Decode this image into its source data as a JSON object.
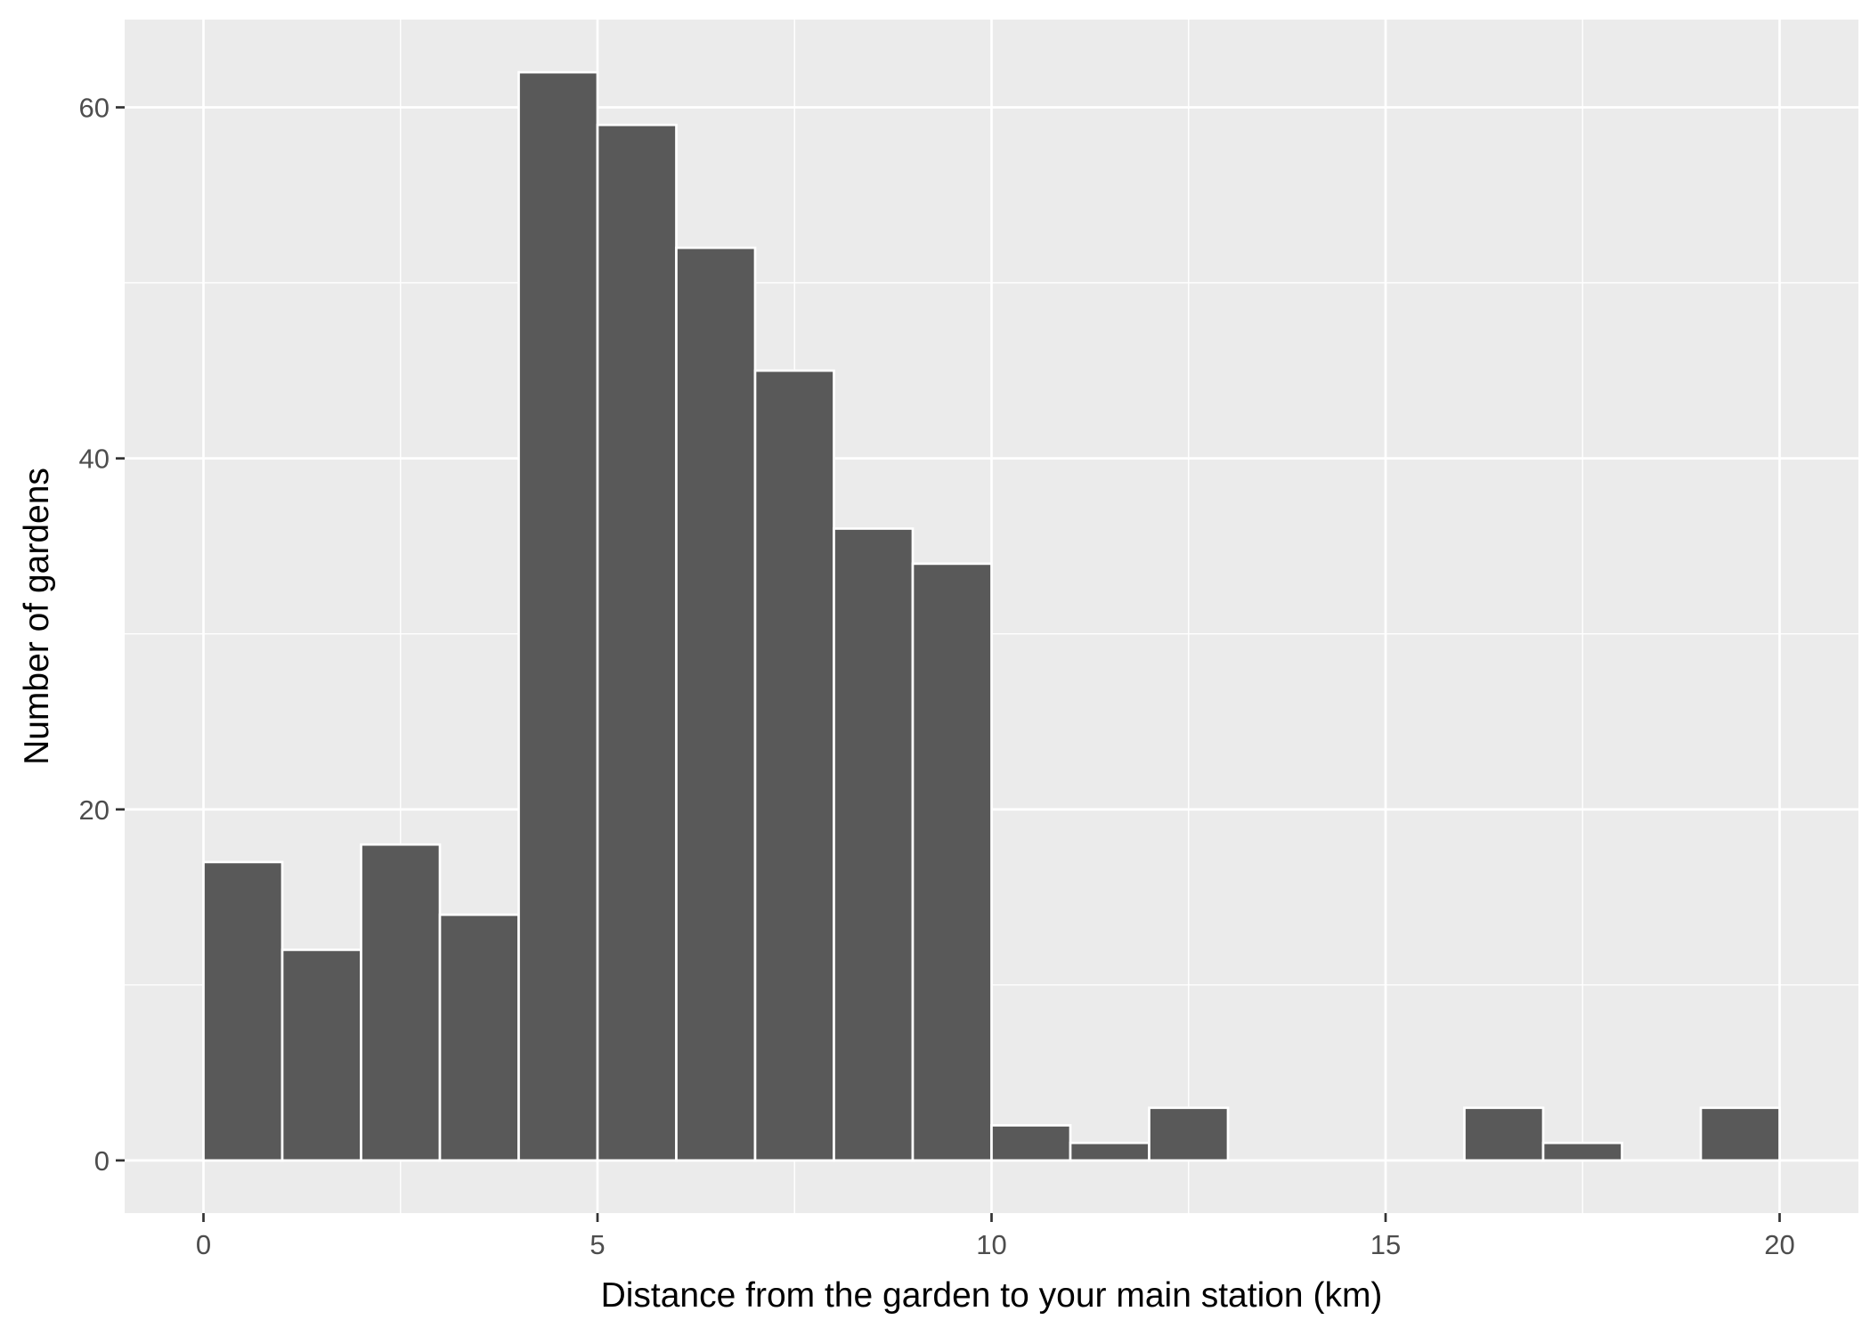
{
  "chart_data": {
    "type": "bar",
    "title": "",
    "xlabel": "Distance from the garden to your main station (km)",
    "ylabel": "Number of gardens",
    "xlim": [
      -1,
      21
    ],
    "ylim": [
      -3,
      65
    ],
    "x_ticks": [
      0,
      5,
      10,
      15,
      20
    ],
    "y_ticks": [
      0,
      20,
      40,
      60
    ],
    "x_tick_labels": [
      "0",
      "5",
      "10",
      "15",
      "20"
    ],
    "y_tick_labels": [
      "0",
      "20",
      "40",
      "60"
    ],
    "grid": true,
    "bar_fill": "#595959",
    "bar_outline": "#ffffff",
    "panel_background": "#ebebeb",
    "bins": [
      {
        "x_start": 0,
        "x_end": 1,
        "count": 17
      },
      {
        "x_start": 1,
        "x_end": 2,
        "count": 12
      },
      {
        "x_start": 2,
        "x_end": 3,
        "count": 18
      },
      {
        "x_start": 3,
        "x_end": 4,
        "count": 14
      },
      {
        "x_start": 4,
        "x_end": 5,
        "count": 62
      },
      {
        "x_start": 5,
        "x_end": 6,
        "count": 59
      },
      {
        "x_start": 6,
        "x_end": 7,
        "count": 52
      },
      {
        "x_start": 7,
        "x_end": 8,
        "count": 45
      },
      {
        "x_start": 8,
        "x_end": 9,
        "count": 36
      },
      {
        "x_start": 9,
        "x_end": 10,
        "count": 34
      },
      {
        "x_start": 10,
        "x_end": 11,
        "count": 2
      },
      {
        "x_start": 11,
        "x_end": 12,
        "count": 1
      },
      {
        "x_start": 12,
        "x_end": 13,
        "count": 3
      },
      {
        "x_start": 13,
        "x_end": 14,
        "count": 0
      },
      {
        "x_start": 14,
        "x_end": 15,
        "count": 0
      },
      {
        "x_start": 15,
        "x_end": 16,
        "count": 0
      },
      {
        "x_start": 16,
        "x_end": 17,
        "count": 3
      },
      {
        "x_start": 17,
        "x_end": 18,
        "count": 1
      },
      {
        "x_start": 18,
        "x_end": 19,
        "count": 0
      },
      {
        "x_start": 19,
        "x_end": 20,
        "count": 3
      }
    ]
  }
}
